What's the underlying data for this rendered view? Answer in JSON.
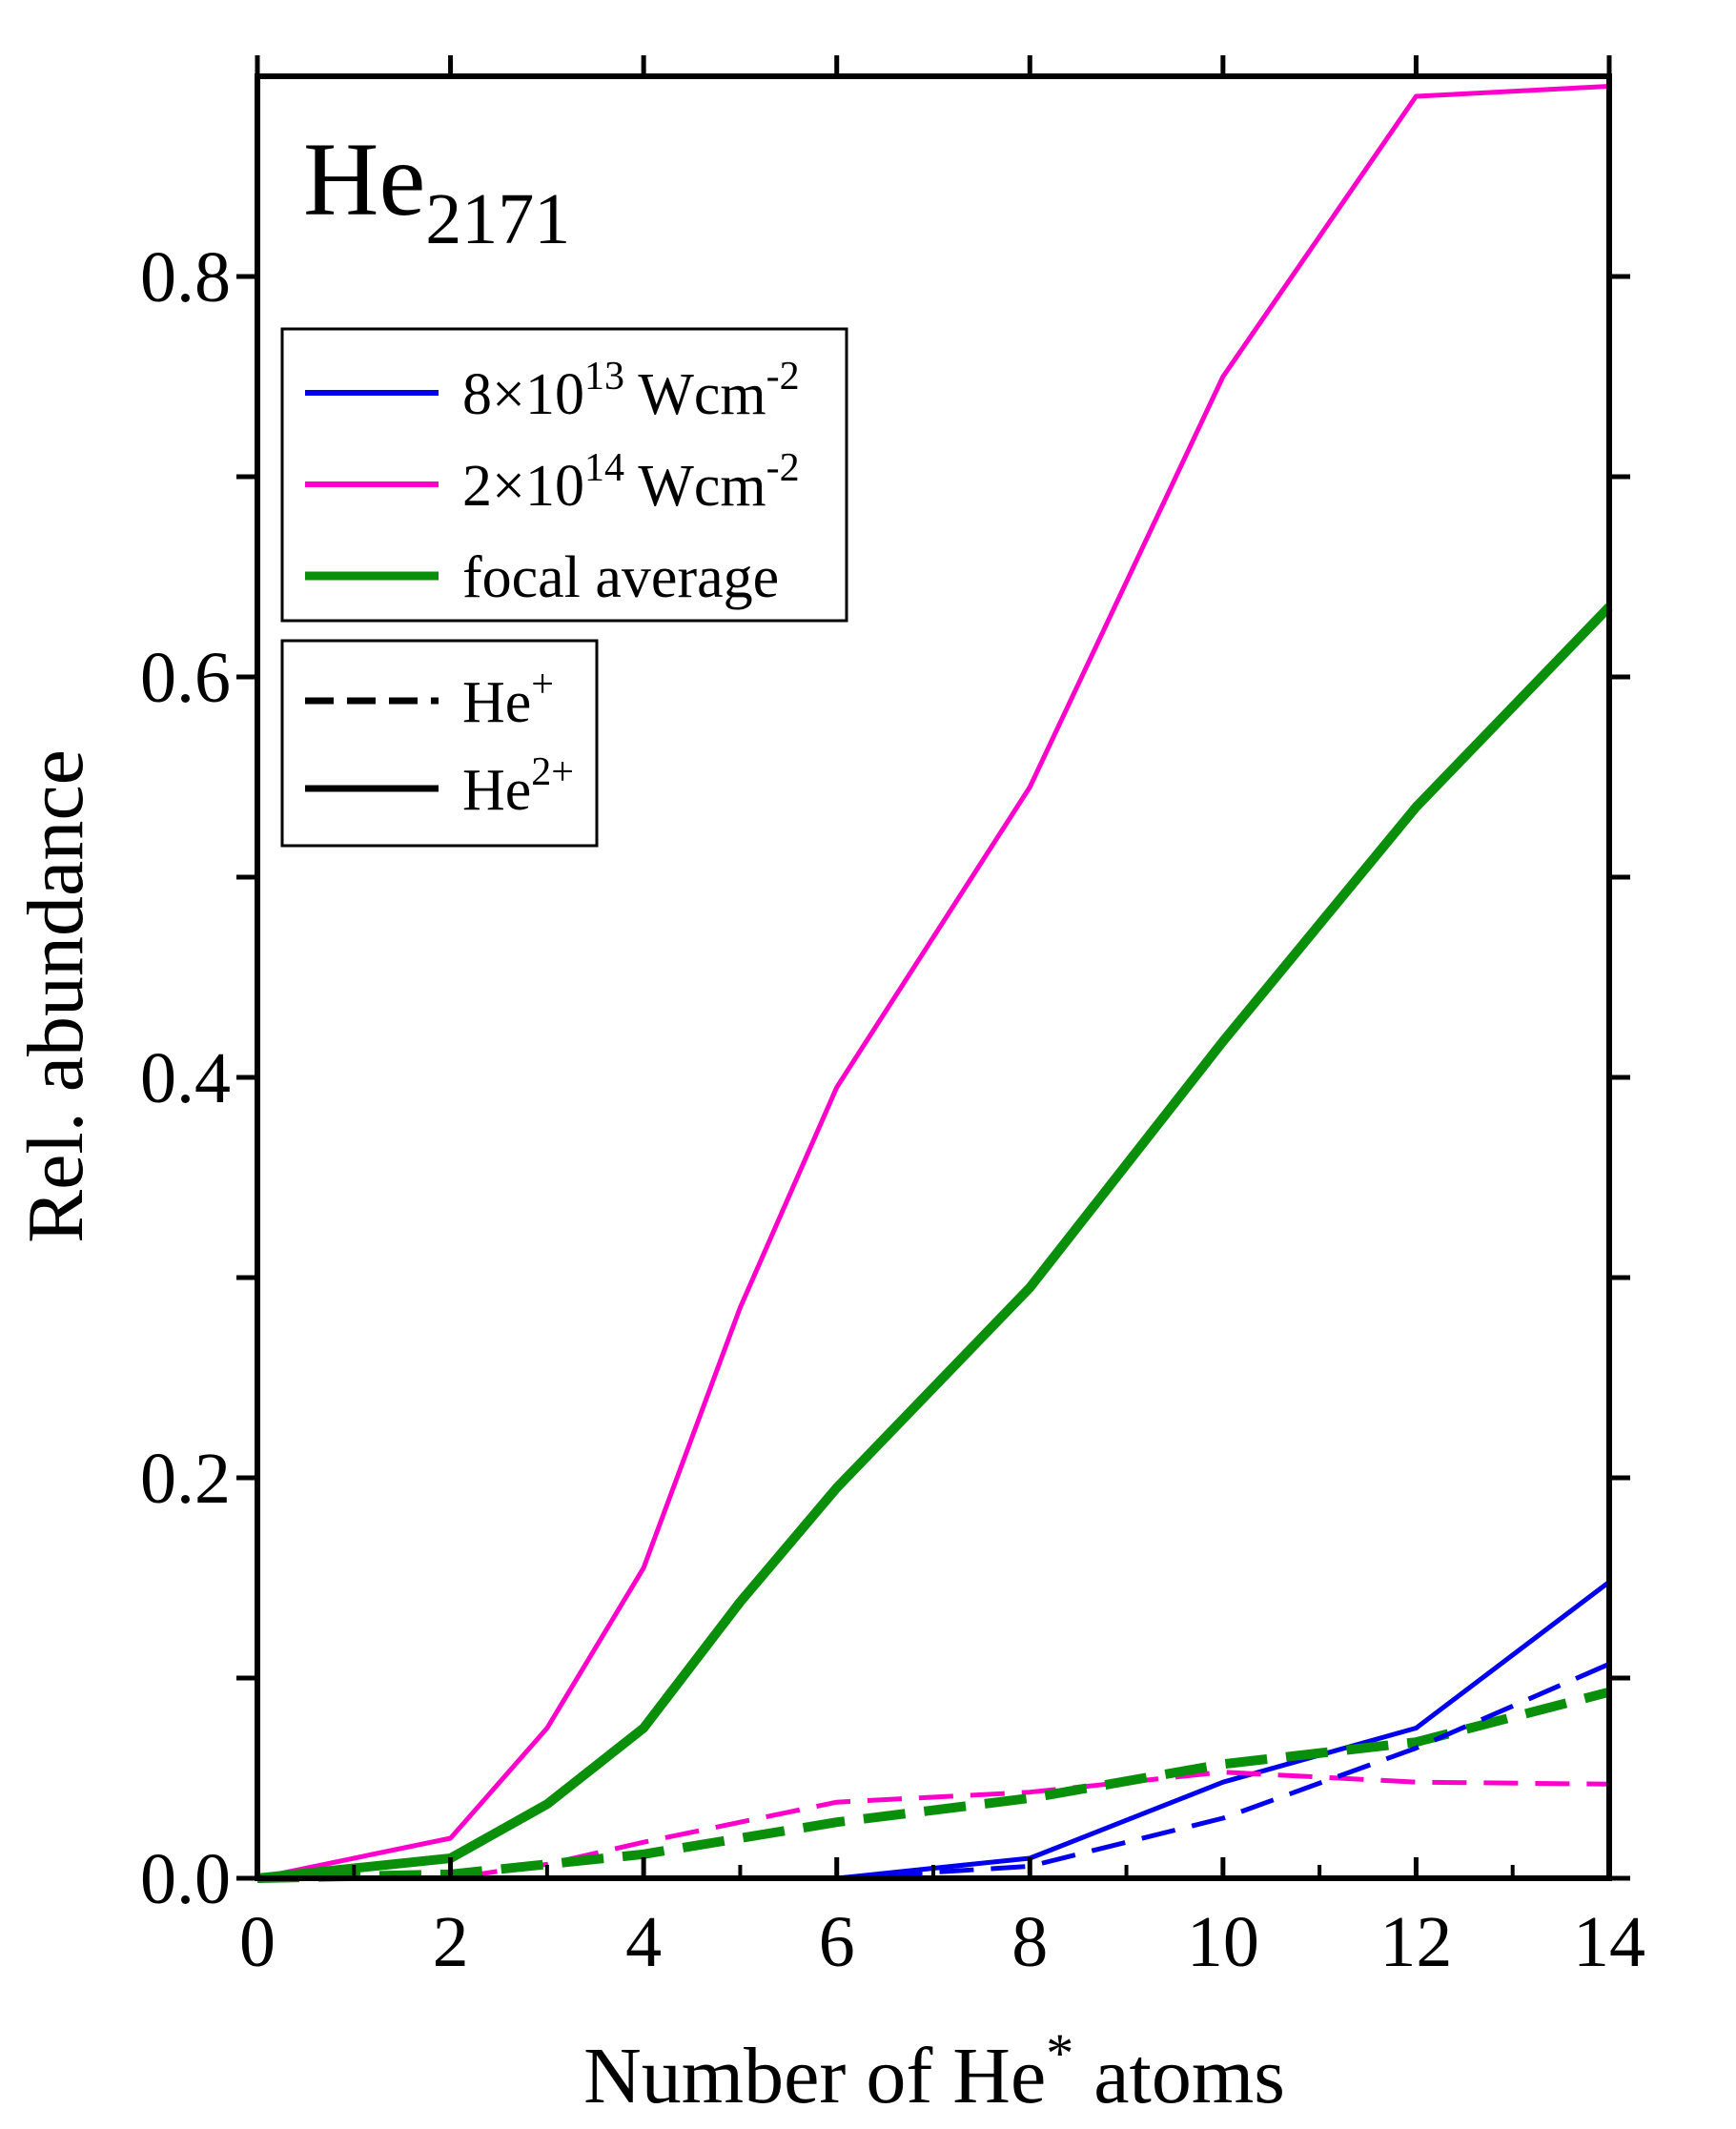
{
  "chart_data": {
    "type": "line",
    "title": "",
    "panel_label": {
      "base": "He",
      "sub": "2171"
    },
    "xlabel": {
      "text": "Number of He",
      "sup": "*",
      "after": " atoms"
    },
    "ylabel": "Rel. abundance",
    "xlim": [
      0,
      14
    ],
    "ylim": [
      0,
      0.9
    ],
    "xticks": [
      0,
      2,
      4,
      6,
      8,
      10,
      12,
      14
    ],
    "xtick_labels": [
      "0",
      "2",
      "4",
      "6",
      "8",
      "10",
      "12",
      "14"
    ],
    "yticks": [
      0.0,
      0.2,
      0.4,
      0.6,
      0.8
    ],
    "ytick_labels": [
      "0.0",
      "0.2",
      "0.4",
      "0.6",
      "0.8"
    ],
    "yminor": [
      0.1,
      0.3,
      0.5,
      0.7
    ],
    "xminor": [
      1,
      3,
      5,
      7,
      9,
      11,
      13
    ],
    "colors": {
      "blue": "#0000ee",
      "magenta": "#ff00cc",
      "green": "#0a8f0a",
      "black": "#000000"
    },
    "legend_intensity": [
      {
        "key": "blue",
        "label": "8×10",
        "sup": "13",
        "unit": " Wcm",
        "unit_sup": "-2"
      },
      {
        "key": "magenta",
        "label": "2×10",
        "sup": "14",
        "unit": " Wcm",
        "unit_sup": "-2"
      },
      {
        "key": "green",
        "label": "focal average",
        "sup": "",
        "unit": "",
        "unit_sup": ""
      }
    ],
    "legend_charge": [
      {
        "style": "dashed",
        "label": "He",
        "sup": "+"
      },
      {
        "style": "solid",
        "label": "He",
        "sup": "2+"
      }
    ],
    "series": [
      {
        "name": "2×10^14 Wcm^-2 He2+",
        "color": "magenta",
        "style": "solid",
        "width": 5,
        "x": [
          0,
          2,
          3,
          4,
          5,
          6,
          8,
          10,
          12,
          14
        ],
        "y": [
          0.0,
          0.02,
          0.075,
          0.155,
          0.285,
          0.395,
          0.545,
          0.75,
          0.89,
          0.895
        ]
      },
      {
        "name": "focal average He2+",
        "color": "green",
        "style": "solid",
        "width": 10,
        "x": [
          0,
          2,
          3,
          4,
          5,
          6,
          8,
          10,
          12,
          14
        ],
        "y": [
          0.0,
          0.01,
          0.037,
          0.075,
          0.138,
          0.195,
          0.295,
          0.418,
          0.535,
          0.635
        ]
      },
      {
        "name": "8×10^13 Wcm^-2 He2+",
        "color": "blue",
        "style": "solid",
        "width": 5,
        "x": [
          6,
          8,
          10,
          12,
          14
        ],
        "y": [
          0.0,
          0.01,
          0.048,
          0.075,
          0.148
        ]
      },
      {
        "name": "2×10^14 Wcm^-2 He+",
        "color": "magenta",
        "style": "dashed",
        "width": 5,
        "x": [
          0,
          2,
          3,
          4,
          6,
          8,
          10,
          12,
          14
        ],
        "y": [
          0.0,
          0.0,
          0.007,
          0.018,
          0.038,
          0.043,
          0.053,
          0.048,
          0.047
        ]
      },
      {
        "name": "focal average He+",
        "color": "green",
        "style": "dashed",
        "width": 10,
        "x": [
          0,
          2,
          4,
          6,
          8,
          10,
          12,
          14
        ],
        "y": [
          0.0,
          0.002,
          0.012,
          0.028,
          0.04,
          0.057,
          0.068,
          0.093
        ]
      },
      {
        "name": "8×10^13 Wcm^-2 He+",
        "color": "blue",
        "style": "dashed",
        "width": 5,
        "x": [
          6,
          8,
          10,
          12,
          14
        ],
        "y": [
          0.0,
          0.006,
          0.03,
          0.065,
          0.107
        ]
      }
    ]
  }
}
